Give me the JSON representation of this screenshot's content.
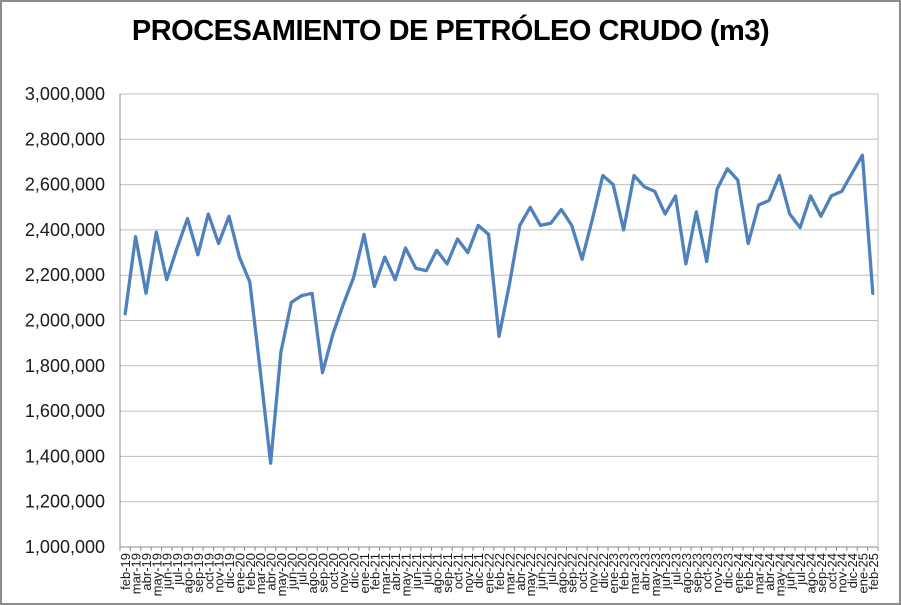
{
  "chart_data": {
    "type": "line",
    "title": "PROCESAMIENTO DE PETRÓLEO CRUDO (m3)",
    "xlabel": "",
    "ylabel": "",
    "ylim": [
      1000000,
      3000000
    ],
    "y_tick_step": 200000,
    "y_tick_labels_top_down": [
      "3,000,000",
      "2,800,000",
      "2,600,000",
      "2,400,000",
      "2,200,000",
      "2,000,000",
      "1,800,000",
      "1,600,000",
      "1,400,000",
      "1,200,000",
      "1,000,000"
    ],
    "grid": true,
    "legend_position": "none",
    "categories": [
      "feb-19",
      "mar-19",
      "abr-19",
      "may-19",
      "jun-19",
      "jul-19",
      "ago-19",
      "sep-19",
      "oct-19",
      "nov-19",
      "dic-19",
      "ene-20",
      "feb-20",
      "mar-20",
      "abr-20",
      "may-20",
      "jun-20",
      "jul-20",
      "ago-20",
      "sep-20",
      "oct-20",
      "nov-20",
      "dic-20",
      "ene-21",
      "feb-21",
      "mar-21",
      "abr-21",
      "may-21",
      "jun-21",
      "jul-21",
      "ago-21",
      "sep-21",
      "oct-21",
      "nov-21",
      "dic-21",
      "ene-22",
      "feb-22",
      "mar-22",
      "abr-22",
      "may-22",
      "jun-22",
      "jul-22",
      "ago-22",
      "sep-22",
      "oct-22",
      "nov-22",
      "dic-22",
      "ene-23",
      "feb-23",
      "mar-23",
      "abr-23",
      "may-23",
      "jun-23",
      "jul-23",
      "ago-23",
      "sep-23",
      "oct-23",
      "nov-23",
      "dic-23",
      "ene-24",
      "feb-24",
      "mar-24",
      "abr-24",
      "may-24",
      "jun-24",
      "jul-24",
      "ago-24",
      "sep-24",
      "oct-24",
      "nov-24",
      "dic-24",
      "ene-25",
      "feb-25"
    ],
    "values": [
      2030000,
      2370000,
      2120000,
      2390000,
      2180000,
      2320000,
      2450000,
      2290000,
      2470000,
      2340000,
      2460000,
      2280000,
      2170000,
      1780000,
      1370000,
      1860000,
      2080000,
      2110000,
      2120000,
      1770000,
      1940000,
      2070000,
      2190000,
      2380000,
      2150000,
      2280000,
      2180000,
      2320000,
      2230000,
      2220000,
      2310000,
      2250000,
      2360000,
      2300000,
      2420000,
      2380000,
      1930000,
      2160000,
      2420000,
      2500000,
      2420000,
      2430000,
      2490000,
      2420000,
      2270000,
      2450000,
      2640000,
      2600000,
      2400000,
      2640000,
      2590000,
      2570000,
      2470000,
      2550000,
      2250000,
      2480000,
      2260000,
      2580000,
      2670000,
      2620000,
      2340000,
      2510000,
      2530000,
      2640000,
      2470000,
      2410000,
      2550000,
      2460000,
      2550000,
      2570000,
      2650000,
      2730000,
      2120000
    ],
    "colors": {
      "line": "#4F81BD",
      "gridline": "#BDBDBD",
      "axis": "#8C8C8C",
      "tick_label": "#1A1A1A",
      "title": "#000000",
      "background": "#FFFFFF",
      "chart_border": "#8C8C8C"
    }
  }
}
